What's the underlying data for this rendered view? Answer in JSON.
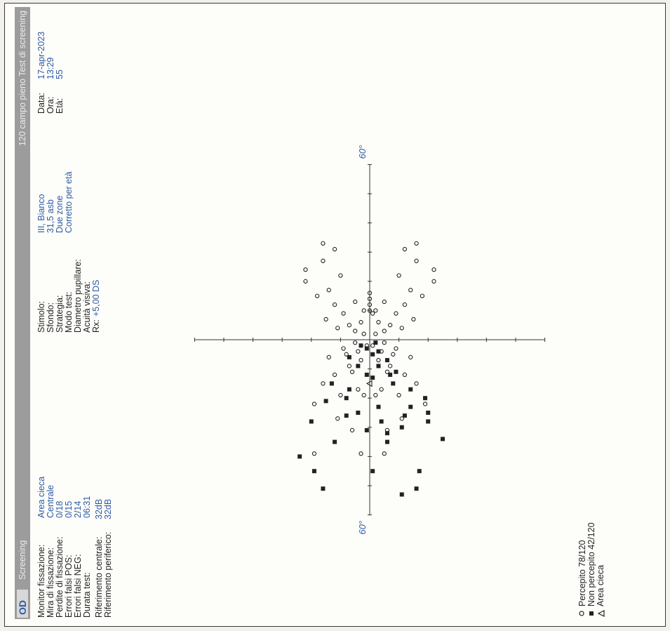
{
  "header": {
    "eye": "OD",
    "mode": "Screening",
    "test_name": "120 campo pieno Test di screening"
  },
  "fixation": {
    "rows": [
      {
        "label": "Monitor fissazione:",
        "value": "Area cieca"
      },
      {
        "label": "Mira di fissazione:",
        "value": "Centrale"
      },
      {
        "label": "Perdite di fissazione:",
        "value": "0/18"
      },
      {
        "label": "Errori falsi POS:",
        "value": "0/15"
      },
      {
        "label": "Errori falsi NEG:",
        "value": "2/14"
      },
      {
        "label": "Durata test:",
        "value": "06:31"
      }
    ],
    "ref_central_label": "Riferimento centrale:",
    "ref_central_value": "32dB",
    "ref_peripheral_label": "Riferimento periferico:",
    "ref_peripheral_value": "32dB"
  },
  "stimulus": {
    "rows": [
      {
        "label": "Stimolo:",
        "value": "III, Bianco"
      },
      {
        "label": "Sfondo:",
        "value": "31,5 asb"
      },
      {
        "label": "Strategia:",
        "value": "Due zone"
      },
      {
        "label": "Modo test:",
        "value": "Corretto per età"
      },
      {
        "label": "Diametro pupillare:",
        "value": ""
      },
      {
        "label": "Acuità visiva:",
        "value": ""
      }
    ],
    "rx_label": "Rx:",
    "rx_value": "+5,00 DS"
  },
  "patient": {
    "rows": [
      {
        "label": "Data:",
        "value": "17-apr-2023"
      },
      {
        "label": "Ora:",
        "value": "13:29"
      },
      {
        "label": "Età:",
        "value": "55"
      }
    ]
  },
  "legend": {
    "seen": "Percepito 78/120",
    "unseen": "Non percepito 42/120",
    "blind": "Area cieca"
  },
  "chart_data": {
    "type": "scatter",
    "axis_label_top": "60°",
    "axis_label_bottom": "60°",
    "xlim": [
      -60,
      60
    ],
    "ylim": [
      -60,
      60
    ],
    "grid": false,
    "seen": [
      [
        -39,
        19
      ],
      [
        -39,
        3
      ],
      [
        -39,
        -5
      ],
      [
        -31,
        6
      ],
      [
        -31,
        -6
      ],
      [
        -27,
        -11
      ],
      [
        -27,
        11
      ],
      [
        -22,
        -19
      ],
      [
        -22,
        19
      ],
      [
        -19,
        -10
      ],
      [
        -19,
        10
      ],
      [
        -19,
        2
      ],
      [
        -19,
        -2
      ],
      [
        -17,
        -4
      ],
      [
        -17,
        4
      ],
      [
        -15,
        -16
      ],
      [
        -15,
        16
      ],
      [
        -12,
        -12
      ],
      [
        -12,
        12
      ],
      [
        -11,
        -6
      ],
      [
        -11,
        6
      ],
      [
        -9,
        -7
      ],
      [
        -9,
        7
      ],
      [
        -7,
        -3
      ],
      [
        -7,
        3
      ],
      [
        -6,
        -14
      ],
      [
        -6,
        14
      ],
      [
        -5,
        -8
      ],
      [
        -5,
        8
      ],
      [
        -4,
        -4
      ],
      [
        -4,
        4
      ],
      [
        -3,
        -9
      ],
      [
        -3,
        9
      ],
      [
        -2,
        -1
      ],
      [
        -2,
        1
      ],
      [
        -1,
        -5
      ],
      [
        -1,
        5
      ],
      [
        2,
        -2
      ],
      [
        2,
        2
      ],
      [
        3,
        -5
      ],
      [
        3,
        5
      ],
      [
        4,
        -11
      ],
      [
        4,
        11
      ],
      [
        5,
        -7
      ],
      [
        5,
        7
      ],
      [
        6,
        -3
      ],
      [
        6,
        3
      ],
      [
        7,
        -15
      ],
      [
        7,
        15
      ],
      [
        9,
        -9
      ],
      [
        9,
        9
      ],
      [
        10,
        -2
      ],
      [
        10,
        2
      ],
      [
        12,
        -12
      ],
      [
        12,
        12
      ],
      [
        13,
        -5
      ],
      [
        13,
        5
      ],
      [
        15,
        -18
      ],
      [
        15,
        18
      ],
      [
        17,
        -14
      ],
      [
        17,
        14
      ],
      [
        20,
        -22
      ],
      [
        20,
        22
      ],
      [
        22,
        -10
      ],
      [
        22,
        10
      ],
      [
        24,
        -22
      ],
      [
        24,
        22
      ],
      [
        27,
        -16
      ],
      [
        27,
        16
      ],
      [
        31,
        -12
      ],
      [
        31,
        12
      ],
      [
        33,
        -16
      ],
      [
        33,
        16
      ],
      [
        9,
        -1
      ],
      [
        10,
        0
      ],
      [
        12,
        0
      ],
      [
        14,
        0
      ],
      [
        16,
        0
      ]
    ],
    "unseen": [
      [
        -51,
        16
      ],
      [
        -51,
        -16
      ],
      [
        -45,
        -17
      ],
      [
        -45,
        19
      ],
      [
        -40,
        24
      ],
      [
        -35,
        -6
      ],
      [
        -35,
        12
      ],
      [
        -34,
        -25
      ],
      [
        -32,
        -6
      ],
      [
        -31,
        1
      ],
      [
        -30,
        -11
      ],
      [
        -28,
        -4
      ],
      [
        -28,
        -20
      ],
      [
        -28,
        20
      ],
      [
        -26,
        -12
      ],
      [
        -26,
        8
      ],
      [
        -25,
        -20
      ],
      [
        -25,
        4
      ],
      [
        -23,
        -3
      ],
      [
        -23,
        -14
      ],
      [
        -21,
        15
      ],
      [
        -20,
        8
      ],
      [
        -20,
        -19
      ],
      [
        -17,
        7
      ],
      [
        -17,
        -14
      ],
      [
        -15,
        -8
      ],
      [
        -15,
        13
      ],
      [
        -13,
        -1
      ],
      [
        -12,
        -7
      ],
      [
        -12,
        1
      ],
      [
        -11,
        -9
      ],
      [
        -9,
        4
      ],
      [
        -9,
        -3
      ],
      [
        -7,
        -6
      ],
      [
        -6,
        7
      ],
      [
        -5,
        -1
      ],
      [
        -4,
        -3
      ],
      [
        -3,
        1
      ],
      [
        -2,
        3
      ],
      [
        -1,
        -2
      ],
      [
        -45,
        -1
      ],
      [
        -53,
        -11
      ]
    ],
    "blind_spot": [
      [
        -15,
        0
      ]
    ]
  },
  "colors": {
    "ink": "#222222",
    "value_blue": "#2d5aa6",
    "header_bar": "#9c9c9c",
    "paper": "#fdfdfa"
  }
}
